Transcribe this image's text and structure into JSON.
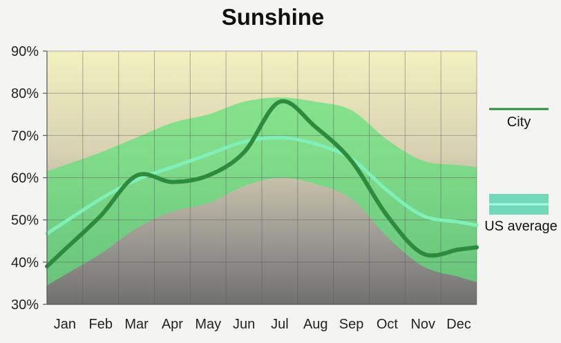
{
  "chart_data": {
    "type": "line",
    "title": "Sunshine",
    "categories": [
      "Jan",
      "Feb",
      "Mar",
      "Apr",
      "May",
      "Jun",
      "Jul",
      "Aug",
      "Sep",
      "Oct",
      "Nov",
      "Dec"
    ],
    "ylim": [
      30,
      90
    ],
    "yticks": [
      "30%",
      "40%",
      "50%",
      "60%",
      "70%",
      "80%",
      "90%"
    ],
    "grid": true,
    "legend_placement": "right",
    "series": [
      {
        "name": "City",
        "color": "#2e8b3e",
        "values": [
          43,
          51,
          60.5,
          59,
          60.5,
          66,
          78,
          72,
          64,
          51,
          42,
          43
        ]
      },
      {
        "name": "US average",
        "color": "#7ff0b8",
        "values": [
          49.5,
          55,
          59.5,
          62.5,
          65.5,
          68.5,
          69.5,
          68,
          64.5,
          57,
          51,
          49.5
        ],
        "band_upper": [
          63,
          66,
          69.5,
          73,
          75,
          78,
          79,
          78,
          76,
          69,
          64,
          63
        ],
        "band_lower": [
          37,
          42,
          48,
          52,
          54,
          58,
          60,
          58.5,
          55,
          46,
          39,
          36.5
        ]
      }
    ]
  }
}
